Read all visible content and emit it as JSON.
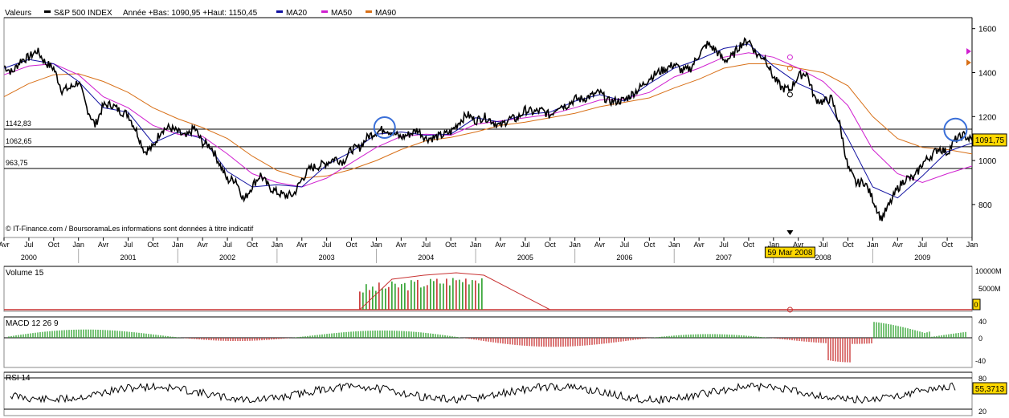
{
  "legend": {
    "values_label": "Valeurs",
    "series_name": "S&P 500 INDEX",
    "stats": "Année +Bas: 1090,95 +Haut: 1150,45",
    "ma20": "MA20",
    "ma50": "MA50",
    "ma90": "MA90"
  },
  "colors": {
    "price": "#000000",
    "ma20": "#1010a0",
    "ma50": "#d020d0",
    "ma90": "#d87018",
    "circle": "#3a6fd8",
    "volume_up": "#2ca02c",
    "volume_down": "#c83232",
    "highlight": "#ffd800"
  },
  "credit": "© IT-Finance.com / BoursoramaLes informations sont données à titre indicatif",
  "price_axis": [
    "1600",
    "1400",
    "1200",
    "1000",
    "800"
  ],
  "hlines": [
    {
      "label": "1142,83",
      "value": 1142.83
    },
    {
      "label": "1062,65",
      "value": 1062.65
    },
    {
      "label": "963,75",
      "value": 963.75
    }
  ],
  "current_value": "1091,75",
  "cursor_date": "59 Mar 2008",
  "month_labels": [
    "Avr",
    "Jul",
    "Oct",
    "Jan",
    "Avr",
    "Jul",
    "Oct",
    "Jan",
    "Avr",
    "Jul",
    "Oct",
    "Jan",
    "Avr",
    "Jul",
    "Oct",
    "Jan",
    "Avr",
    "Jul",
    "Oct",
    "Jan",
    "Avr",
    "Jul",
    "Oct",
    "Jan",
    "Avr",
    "Jul",
    "Oct",
    "Jan",
    "Avr",
    "Jul",
    "Oct",
    "Jan",
    "Avr",
    "Jul",
    "Oct",
    "Jan",
    "Avr",
    "Jul",
    "Oct",
    "Jan"
  ],
  "year_labels": [
    "2000",
    "2001",
    "2002",
    "2003",
    "2004",
    "2005",
    "2006",
    "2007",
    "2008",
    "2009"
  ],
  "volume": {
    "title": "Volume 15",
    "axis": [
      "10000M",
      "5000M"
    ],
    "current": "0"
  },
  "macd": {
    "title": "MACD 12 26 9",
    "axis": [
      "40",
      "0",
      "-40"
    ]
  },
  "rsi": {
    "title": "RSI 14",
    "axis": [
      "80",
      "20"
    ],
    "current": "55,3713"
  },
  "chart_data": {
    "type": "line",
    "title": "S&P 500 INDEX",
    "ylim": [
      650,
      1650
    ],
    "x_start": "2000-04",
    "x_end": "2010-01",
    "series": [
      {
        "name": "S&P 500 INDEX",
        "values": [
          [
            "2000-04",
            1430
          ],
          [
            "2000-05",
            1400
          ],
          [
            "2000-06",
            1455
          ],
          [
            "2000-07",
            1470
          ],
          [
            "2000-08",
            1500
          ],
          [
            "2000-09",
            1445
          ],
          [
            "2000-10",
            1420
          ],
          [
            "2000-11",
            1320
          ],
          [
            "2000-12",
            1330
          ],
          [
            "2001-01",
            1360
          ],
          [
            "2001-02",
            1240
          ],
          [
            "2001-03",
            1160
          ],
          [
            "2001-04",
            1250
          ],
          [
            "2001-05",
            1255
          ],
          [
            "2001-06",
            1225
          ],
          [
            "2001-07",
            1210
          ],
          [
            "2001-08",
            1135
          ],
          [
            "2001-09",
            1040
          ],
          [
            "2001-10",
            1060
          ],
          [
            "2001-11",
            1140
          ],
          [
            "2001-12",
            1150
          ],
          [
            "2002-01",
            1130
          ],
          [
            "2002-02",
            1105
          ],
          [
            "2002-03",
            1150
          ],
          [
            "2002-04",
            1080
          ],
          [
            "2002-05",
            1065
          ],
          [
            "2002-06",
            990
          ],
          [
            "2002-07",
            910
          ],
          [
            "2002-08",
            915
          ],
          [
            "2002-09",
            820
          ],
          [
            "2002-10",
            885
          ],
          [
            "2002-11",
            935
          ],
          [
            "2002-12",
            880
          ],
          [
            "2003-01",
            855
          ],
          [
            "2003-02",
            840
          ],
          [
            "2003-03",
            845
          ],
          [
            "2003-04",
            915
          ],
          [
            "2003-05",
            965
          ],
          [
            "2003-06",
            975
          ],
          [
            "2003-07",
            990
          ],
          [
            "2003-08",
            1010
          ],
          [
            "2003-09",
            995
          ],
          [
            "2003-10",
            1050
          ],
          [
            "2003-11",
            1060
          ],
          [
            "2003-12",
            1110
          ],
          [
            "2004-01",
            1130
          ],
          [
            "2004-02",
            1145
          ],
          [
            "2004-03",
            1125
          ],
          [
            "2004-04",
            1105
          ],
          [
            "2004-05",
            1120
          ],
          [
            "2004-06",
            1140
          ],
          [
            "2004-07",
            1100
          ],
          [
            "2004-08",
            1104
          ],
          [
            "2004-09",
            1115
          ],
          [
            "2004-10",
            1130
          ],
          [
            "2004-11",
            1175
          ],
          [
            "2004-12",
            1210
          ],
          [
            "2005-01",
            1180
          ],
          [
            "2005-02",
            1200
          ],
          [
            "2005-03",
            1180
          ],
          [
            "2005-04",
            1155
          ],
          [
            "2005-05",
            1190
          ],
          [
            "2005-06",
            1190
          ],
          [
            "2005-07",
            1230
          ],
          [
            "2005-08",
            1220
          ],
          [
            "2005-09",
            1228
          ],
          [
            "2005-10",
            1205
          ],
          [
            "2005-11",
            1250
          ],
          [
            "2005-12",
            1250
          ],
          [
            "2006-01",
            1280
          ],
          [
            "2006-02",
            1280
          ],
          [
            "2006-03",
            1295
          ],
          [
            "2006-04",
            1310
          ],
          [
            "2006-05",
            1270
          ],
          [
            "2006-06",
            1270
          ],
          [
            "2006-07",
            1275
          ],
          [
            "2006-08",
            1305
          ],
          [
            "2006-09",
            1335
          ],
          [
            "2006-10",
            1375
          ],
          [
            "2006-11",
            1400
          ],
          [
            "2006-12",
            1418
          ],
          [
            "2007-01",
            1438
          ],
          [
            "2007-02",
            1406
          ],
          [
            "2007-03",
            1420
          ],
          [
            "2007-04",
            1482
          ],
          [
            "2007-05",
            1530
          ],
          [
            "2007-06",
            1503
          ],
          [
            "2007-07",
            1455
          ],
          [
            "2007-08",
            1473
          ],
          [
            "2007-09",
            1527
          ],
          [
            "2007-10",
            1549
          ],
          [
            "2007-11",
            1481
          ],
          [
            "2007-12",
            1468
          ],
          [
            "2008-01",
            1378
          ],
          [
            "2008-02",
            1330
          ],
          [
            "2008-03",
            1322
          ],
          [
            "2008-04",
            1385
          ],
          [
            "2008-05",
            1400
          ],
          [
            "2008-06",
            1280
          ],
          [
            "2008-07",
            1267
          ],
          [
            "2008-08",
            1282
          ],
          [
            "2008-09",
            1166
          ],
          [
            "2008-10",
            968
          ],
          [
            "2008-11",
            896
          ],
          [
            "2008-12",
            903
          ],
          [
            "2009-01",
            826
          ],
          [
            "2009-02",
            735
          ],
          [
            "2009-03",
            798
          ],
          [
            "2009-04",
            873
          ],
          [
            "2009-05",
            919
          ],
          [
            "2009-06",
            919
          ],
          [
            "2009-07",
            987
          ],
          [
            "2009-08",
            1020
          ],
          [
            "2009-09",
            1057
          ],
          [
            "2009-10",
            1036
          ],
          [
            "2009-11",
            1095
          ],
          [
            "2009-12",
            1115
          ],
          [
            "2010-01",
            1091.75
          ]
        ]
      },
      {
        "name": "MA20",
        "values": [
          [
            "2000-04",
            1420
          ],
          [
            "2000-07",
            1460
          ],
          [
            "2000-10",
            1440
          ],
          [
            "2001-01",
            1360
          ],
          [
            "2001-04",
            1240
          ],
          [
            "2001-07",
            1220
          ],
          [
            "2001-10",
            1080
          ],
          [
            "2002-01",
            1130
          ],
          [
            "2002-04",
            1100
          ],
          [
            "2002-07",
            950
          ],
          [
            "2002-10",
            880
          ],
          [
            "2003-01",
            890
          ],
          [
            "2003-04",
            880
          ],
          [
            "2003-07",
            980
          ],
          [
            "2003-10",
            1040
          ],
          [
            "2004-01",
            1120
          ],
          [
            "2004-04",
            1130
          ],
          [
            "2004-07",
            1115
          ],
          [
            "2004-10",
            1120
          ],
          [
            "2005-01",
            1195
          ],
          [
            "2005-04",
            1175
          ],
          [
            "2005-07",
            1210
          ],
          [
            "2005-10",
            1220
          ],
          [
            "2006-01",
            1270
          ],
          [
            "2006-04",
            1300
          ],
          [
            "2006-07",
            1270
          ],
          [
            "2006-10",
            1350
          ],
          [
            "2007-01",
            1420
          ],
          [
            "2007-04",
            1460
          ],
          [
            "2007-07",
            1510
          ],
          [
            "2007-10",
            1530
          ],
          [
            "2008-01",
            1430
          ],
          [
            "2008-04",
            1350
          ],
          [
            "2008-07",
            1300
          ],
          [
            "2008-10",
            1100
          ],
          [
            "2009-01",
            880
          ],
          [
            "2009-04",
            830
          ],
          [
            "2009-07",
            930
          ],
          [
            "2009-10",
            1040
          ],
          [
            "2010-01",
            1080
          ]
        ]
      },
      {
        "name": "MA50",
        "values": [
          [
            "2000-04",
            1390
          ],
          [
            "2000-07",
            1430
          ],
          [
            "2000-10",
            1440
          ],
          [
            "2001-01",
            1390
          ],
          [
            "2001-04",
            1290
          ],
          [
            "2001-07",
            1240
          ],
          [
            "2001-10",
            1160
          ],
          [
            "2002-01",
            1120
          ],
          [
            "2002-04",
            1110
          ],
          [
            "2002-07",
            1030
          ],
          [
            "2002-10",
            940
          ],
          [
            "2003-01",
            900
          ],
          [
            "2003-04",
            880
          ],
          [
            "2003-07",
            920
          ],
          [
            "2003-10",
            990
          ],
          [
            "2004-01",
            1060
          ],
          [
            "2004-04",
            1110
          ],
          [
            "2004-07",
            1120
          ],
          [
            "2004-10",
            1115
          ],
          [
            "2005-01",
            1165
          ],
          [
            "2005-04",
            1180
          ],
          [
            "2005-07",
            1195
          ],
          [
            "2005-10",
            1210
          ],
          [
            "2006-01",
            1240
          ],
          [
            "2006-04",
            1275
          ],
          [
            "2006-07",
            1280
          ],
          [
            "2006-10",
            1310
          ],
          [
            "2007-01",
            1380
          ],
          [
            "2007-04",
            1420
          ],
          [
            "2007-07",
            1470
          ],
          [
            "2007-10",
            1490
          ],
          [
            "2008-01",
            1470
          ],
          [
            "2008-04",
            1420
          ],
          [
            "2008-07",
            1360
          ],
          [
            "2008-10",
            1250
          ],
          [
            "2009-01",
            1050
          ],
          [
            "2009-04",
            940
          ],
          [
            "2009-07",
            900
          ],
          [
            "2009-10",
            940
          ],
          [
            "2010-01",
            975
          ]
        ]
      },
      {
        "name": "MA90",
        "values": [
          [
            "2000-04",
            1290
          ],
          [
            "2000-07",
            1350
          ],
          [
            "2000-10",
            1390
          ],
          [
            "2001-01",
            1395
          ],
          [
            "2001-04",
            1360
          ],
          [
            "2001-07",
            1310
          ],
          [
            "2001-10",
            1240
          ],
          [
            "2002-01",
            1190
          ],
          [
            "2002-04",
            1150
          ],
          [
            "2002-07",
            1100
          ],
          [
            "2002-10",
            1020
          ],
          [
            "2003-01",
            955
          ],
          [
            "2003-04",
            920
          ],
          [
            "2003-07",
            930
          ],
          [
            "2003-10",
            960
          ],
          [
            "2004-01",
            1000
          ],
          [
            "2004-04",
            1050
          ],
          [
            "2004-07",
            1090
          ],
          [
            "2004-10",
            1105
          ],
          [
            "2005-01",
            1130
          ],
          [
            "2005-04",
            1160
          ],
          [
            "2005-07",
            1175
          ],
          [
            "2005-10",
            1195
          ],
          [
            "2006-01",
            1215
          ],
          [
            "2006-04",
            1245
          ],
          [
            "2006-07",
            1265
          ],
          [
            "2006-10",
            1285
          ],
          [
            "2007-01",
            1330
          ],
          [
            "2007-04",
            1370
          ],
          [
            "2007-07",
            1420
          ],
          [
            "2007-10",
            1440
          ],
          [
            "2008-01",
            1440
          ],
          [
            "2008-04",
            1420
          ],
          [
            "2008-07",
            1400
          ],
          [
            "2008-10",
            1340
          ],
          [
            "2009-01",
            1200
          ],
          [
            "2009-04",
            1100
          ],
          [
            "2009-07",
            1060
          ],
          [
            "2009-10",
            1050
          ],
          [
            "2010-01",
            1030
          ]
        ]
      }
    ]
  }
}
